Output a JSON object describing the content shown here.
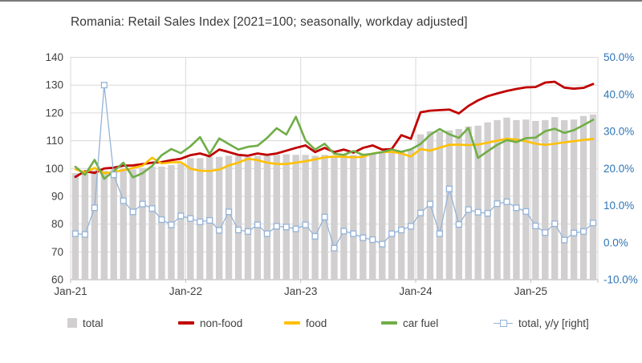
{
  "chart_data": {
    "type": "bar+line combo, dual axis",
    "title": "Romania: Retail Sales Index [2021=100; seasonally, workday adjusted]",
    "months": [
      "Jan-21",
      "Feb-21",
      "Mar-21",
      "Apr-21",
      "May-21",
      "Jun-21",
      "Jul-21",
      "Aug-21",
      "Sep-21",
      "Oct-21",
      "Nov-21",
      "Dec-21",
      "Jan-22",
      "Feb-22",
      "Mar-22",
      "Apr-22",
      "May-22",
      "Jun-22",
      "Jul-22",
      "Aug-22",
      "Sep-22",
      "Oct-22",
      "Nov-22",
      "Dec-22",
      "Jan-23",
      "Feb-23",
      "Mar-23",
      "Apr-23",
      "May-23",
      "Jun-23",
      "Jul-23",
      "Aug-23",
      "Sep-23",
      "Oct-23",
      "Nov-23",
      "Dec-23",
      "Jan-24",
      "Feb-24",
      "Mar-24",
      "Apr-24",
      "May-24",
      "Jun-24",
      "Jul-24",
      "Aug-24",
      "Sep-24",
      "Oct-24",
      "Nov-24",
      "Dec-24",
      "Jan-25",
      "Feb-25",
      "Mar-25",
      "Apr-25",
      "May-25",
      "Jun-25",
      "Jul-25"
    ],
    "x_tick_labels": [
      "Jan-21",
      "Jan-22",
      "Jan-23",
      "Jan-24",
      "Jan-25"
    ],
    "left_axis": {
      "min": 60,
      "max": 140,
      "ticks": [
        "140",
        "130",
        "120",
        "110",
        "100",
        "90",
        "80",
        "70",
        "60"
      ]
    },
    "right_axis": {
      "min": -10,
      "max": 50,
      "ticks": [
        "50.0%",
        "40.0%",
        "30.0%",
        "20.0%",
        "10.0%",
        "0.0%",
        "-10.0%"
      ],
      "tick_values": [
        50,
        40,
        30,
        20,
        10,
        0,
        -10
      ]
    },
    "series": {
      "total": {
        "name": "total",
        "kind": "bar",
        "axis": "left",
        "values": [
          98.3,
          98.3,
          99.4,
          99.2,
          99.7,
          100.0,
          99.7,
          100.2,
          100.7,
          100.7,
          101.2,
          101.7,
          103.7,
          103.7,
          104.2,
          104.2,
          104.6,
          104.5,
          104.2,
          104.5,
          104.6,
          104.9,
          105.1,
          104.9,
          104.9,
          104.6,
          104.9,
          104.5,
          104.9,
          104.9,
          105.2,
          105.4,
          105.6,
          105.9,
          106.4,
          106.8,
          112.3,
          113.4,
          113.3,
          113.7,
          114.2,
          115.1,
          115.4,
          116.6,
          117.4,
          118.3,
          117.4,
          117.6,
          117.1,
          117.4,
          118.5,
          117.4,
          117.6,
          118.9,
          119.4
        ]
      },
      "non_food": {
        "name": "non-food",
        "kind": "line",
        "axis": "left",
        "values": [
          97.0,
          99.0,
          98.4,
          100.0,
          100.3,
          101.0,
          101.1,
          101.6,
          102.1,
          102.3,
          103.0,
          103.5,
          104.8,
          105.4,
          104.4,
          106.8,
          105.9,
          104.9,
          104.6,
          105.4,
          104.9,
          105.4,
          106.4,
          107.4,
          108.3,
          105.9,
          107.4,
          105.9,
          106.8,
          105.7,
          107.4,
          108.3,
          106.8,
          107.0,
          112.0,
          110.7,
          120.2,
          120.8,
          121.0,
          121.2,
          119.8,
          122.5,
          124.5,
          126.0,
          127.0,
          127.9,
          128.6,
          129.2,
          129.3,
          130.9,
          131.2,
          129.1,
          128.7,
          129.0,
          130.4
        ]
      },
      "food": {
        "name": "food",
        "kind": "line",
        "axis": "left",
        "values": [
          99.7,
          98.6,
          100.2,
          98.3,
          98.7,
          99.4,
          100.2,
          101.0,
          103.9,
          101.8,
          102.2,
          102.3,
          99.9,
          99.2,
          99.1,
          99.6,
          101.1,
          102.1,
          103.5,
          103.0,
          102.1,
          101.6,
          101.6,
          102.1,
          102.6,
          103.3,
          104.0,
          104.3,
          104.2,
          104.0,
          104.2,
          105.4,
          105.9,
          106.0,
          105.4,
          104.3,
          107.0,
          106.4,
          107.5,
          108.5,
          108.6,
          108.4,
          108.6,
          109.3,
          110.0,
          110.7,
          110.4,
          109.8,
          108.9,
          108.5,
          108.9,
          109.4,
          109.8,
          110.3,
          110.6
        ]
      },
      "car_fuel": {
        "name": "car fuel",
        "kind": "line",
        "axis": "left",
        "values": [
          100.6,
          97.7,
          103.1,
          96.3,
          99.0,
          102.1,
          96.8,
          98.3,
          100.9,
          104.8,
          107.0,
          105.5,
          108.0,
          111.3,
          105.2,
          110.8,
          108.8,
          106.8,
          107.8,
          108.2,
          111.0,
          114.5,
          112.2,
          118.6,
          110.1,
          106.8,
          108.9,
          105.3,
          104.9,
          106.3,
          104.9,
          105.3,
          105.9,
          106.8,
          106.0,
          106.9,
          108.8,
          112.1,
          114.2,
          112.3,
          111.0,
          114.6,
          103.8,
          106.2,
          108.5,
          110.2,
          109.5,
          110.9,
          111.1,
          113.4,
          114.3,
          112.8,
          113.8,
          115.6,
          117.5
        ]
      },
      "total_yoy": {
        "name": "total, y/y [right]",
        "kind": "line+marker",
        "axis": "right",
        "values": [
          2.4,
          2.2,
          9.4,
          42.5,
          18.3,
          11.3,
          8.3,
          10.4,
          9.2,
          6.2,
          4.8,
          7.2,
          6.5,
          5.6,
          6.0,
          3.3,
          8.3,
          3.4,
          3.0,
          4.8,
          2.4,
          4.4,
          4.2,
          3.7,
          4.8,
          1.7,
          6.9,
          -1.5,
          3.1,
          2.4,
          1.3,
          0.8,
          -0.4,
          2.4,
          3.4,
          4.4,
          8.0,
          10.4,
          2.4,
          14.5,
          4.9,
          8.9,
          8.2,
          7.9,
          10.5,
          11.0,
          9.4,
          8.4,
          4.5,
          2.7,
          5.1,
          0.7,
          2.6,
          3.0,
          5.3
        ]
      }
    },
    "legend": [
      {
        "label": "total",
        "type": "bar",
        "color": "#d1cfcf"
      },
      {
        "label": "non-food",
        "type": "line",
        "color": "#c00000"
      },
      {
        "label": "food",
        "type": "line",
        "color": "#ffc000"
      },
      {
        "label": "car fuel",
        "type": "line",
        "color": "#70ad47"
      },
      {
        "label": "total, y/y [right]",
        "type": "line-marker",
        "color": "#95b3d7"
      }
    ],
    "legend_position": "bottom",
    "grid": true,
    "colors": {
      "bar": "#d1cfcf",
      "non_food": "#c00000",
      "food": "#ffc000",
      "car_fuel": "#70ad47",
      "yoy_line": "#95b3d7",
      "right_axis_text": "#2e75b6",
      "axis_text": "#404040",
      "gridline": "#d9d9d9",
      "axis_line": "#bfbfbf",
      "title_text": "#383838"
    }
  }
}
